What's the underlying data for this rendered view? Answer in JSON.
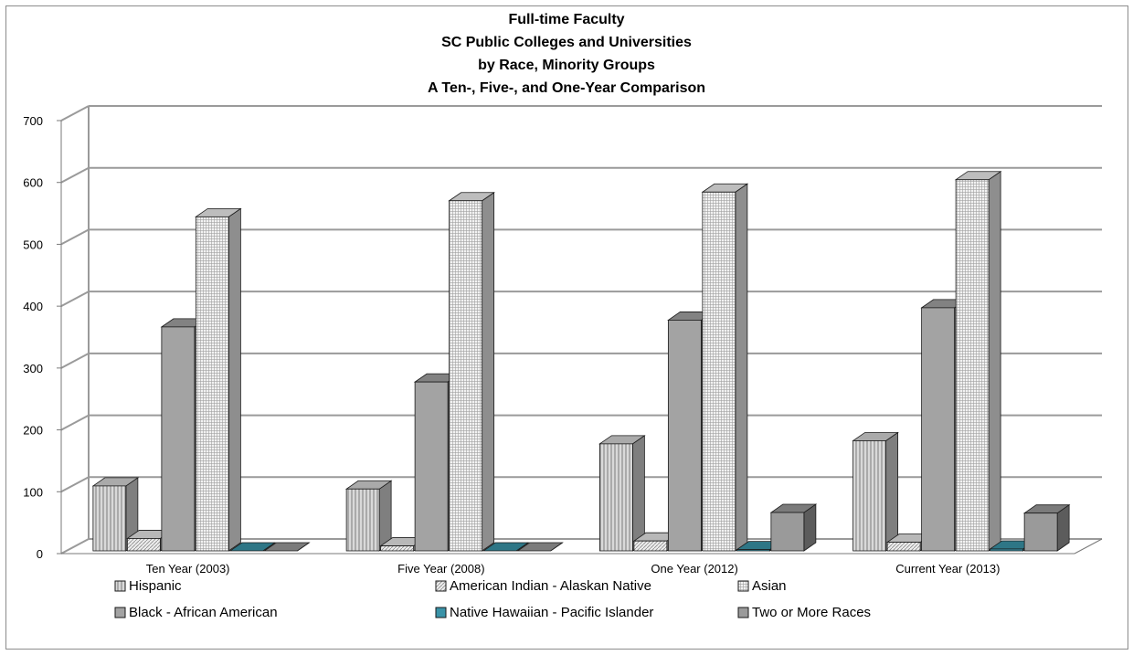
{
  "chart_data": {
    "type": "bar",
    "title_lines": [
      "Full-time Faculty",
      "SC Public Colleges and Universities",
      "by Race, Minority Groups",
      "A Ten-, Five-, and One-Year Comparison"
    ],
    "categories": [
      "Ten Year (2003)",
      "Five Year (2008)",
      "One Year (2012)",
      "Current Year (2013)"
    ],
    "ylim": [
      0,
      700
    ],
    "yticks": [
      "0",
      "100",
      "200",
      "300",
      "400",
      "500",
      "600",
      "700"
    ],
    "grid": true,
    "legend_position": "bottom",
    "series": [
      {
        "name": "Hispanic",
        "values": [
          105,
          100,
          173,
          178
        ],
        "fill": "#d4d4d4",
        "pattern": "vertical-lines"
      },
      {
        "name": "American Indian - Alaskan Native",
        "values": [
          20,
          8,
          16,
          14
        ],
        "fill": "#e6e6e6",
        "pattern": "diagonal"
      },
      {
        "name": "Black - African American",
        "values": [
          362,
          273,
          373,
          393
        ],
        "fill": "#a3a3a3",
        "pattern": "solid"
      },
      {
        "name": "Asian",
        "values": [
          540,
          566,
          580,
          600
        ],
        "fill": "#ececec",
        "pattern": "grid"
      },
      {
        "name": "Native Hawaiian - Pacific Islander",
        "values": [
          0,
          0,
          2,
          3
        ],
        "fill": "#3a93a8",
        "pattern": "solid"
      },
      {
        "name": "Two or More Races",
        "values": [
          0,
          0,
          62,
          61
        ],
        "fill": "#9a9a9a",
        "pattern": "solid"
      }
    ],
    "legend_order": [
      "Hispanic",
      "American Indian - Alaskan Native",
      "Asian",
      "Black - African American",
      "Native Hawaiian - Pacific Islander",
      "Two or More Races"
    ],
    "colors": {
      "grid": "#9a9a9a",
      "frame": "#8c8c8c",
      "edge": "#1a1a1a"
    }
  }
}
